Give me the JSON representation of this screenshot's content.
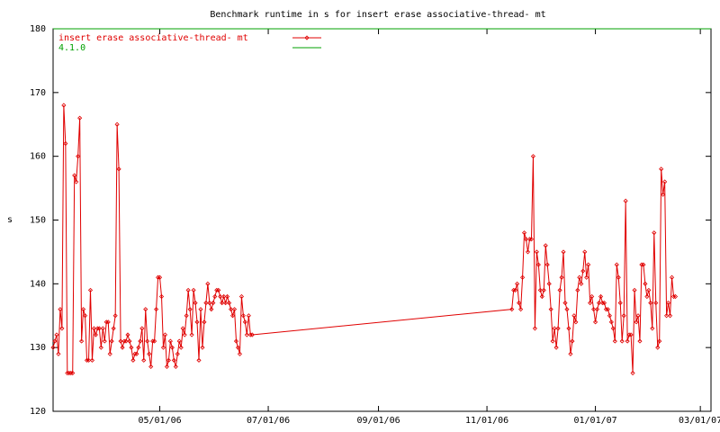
{
  "chart_data": {
    "type": "line",
    "title": "Benchmark runtime in s for insert erase associative-thread-  mt",
    "y_label": "s",
    "xlim": [
      "03/02/06",
      "03/07/07"
    ],
    "xticks": [
      "05/01/06",
      "07/01/06",
      "09/01/06",
      "11/01/06",
      "01/01/07",
      "03/01/07"
    ],
    "ylim": [
      120,
      180
    ],
    "yticks": [
      120,
      130,
      140,
      150,
      160,
      170,
      180
    ],
    "legend": "top-left",
    "series": [
      {
        "name": "insert erase associative-thread-  mt",
        "color": "#e00000",
        "markers": true,
        "x": [
          "03/02/06",
          "03/03/06",
          "03/04/06",
          "03/05/06",
          "03/06/06",
          "03/07/06",
          "03/08/06",
          "03/09/06",
          "03/10/06",
          "03/11/06",
          "03/12/06",
          "03/13/06",
          "03/14/06",
          "03/15/06",
          "03/16/06",
          "03/17/06",
          "03/18/06",
          "03/19/06",
          "03/20/06",
          "03/21/06",
          "03/22/06",
          "03/23/06",
          "03/24/06",
          "03/25/06",
          "03/26/06",
          "03/27/06",
          "03/28/06",
          "03/29/06",
          "03/30/06",
          "03/31/06",
          "04/01/06",
          "04/02/06",
          "04/03/06",
          "04/04/06",
          "04/05/06",
          "04/06/06",
          "04/07/06",
          "04/08/06",
          "04/09/06",
          "04/10/06",
          "04/11/06",
          "04/12/06",
          "04/13/06",
          "04/14/06",
          "04/15/06",
          "04/16/06",
          "04/17/06",
          "04/18/06",
          "04/19/06",
          "04/20/06",
          "04/21/06",
          "04/22/06",
          "04/23/06",
          "04/24/06",
          "04/25/06",
          "04/26/06",
          "04/27/06",
          "04/28/06",
          "04/29/06",
          "04/30/06",
          "05/01/06",
          "05/02/06",
          "05/03/06",
          "05/04/06",
          "05/05/06",
          "05/06/06",
          "05/07/06",
          "05/08/06",
          "05/09/06",
          "05/10/06",
          "05/11/06",
          "05/12/06",
          "05/13/06",
          "05/14/06",
          "05/15/06",
          "05/16/06",
          "05/17/06",
          "05/18/06",
          "05/19/06",
          "05/20/06",
          "05/21/06",
          "05/22/06",
          "05/23/06",
          "05/24/06",
          "05/25/06",
          "05/26/06",
          "05/27/06",
          "05/28/06",
          "05/29/06",
          "05/30/06",
          "05/31/06",
          "06/01/06",
          "06/02/06",
          "06/03/06",
          "06/04/06",
          "06/05/06",
          "06/06/06",
          "06/07/06",
          "06/08/06",
          "06/09/06",
          "06/10/06",
          "06/11/06",
          "06/12/06",
          "06/13/06",
          "06/14/06",
          "06/15/06",
          "06/16/06",
          "06/17/06",
          "06/18/06",
          "06/19/06",
          "06/20/06",
          "06/21/06",
          "06/22/06",
          "11/15/06",
          "11/16/06",
          "11/17/06",
          "11/18/06",
          "11/19/06",
          "11/20/06",
          "11/21/06",
          "11/22/06",
          "11/23/06",
          "11/24/06",
          "11/25/06",
          "11/26/06",
          "11/27/06",
          "11/28/06",
          "11/29/06",
          "11/30/06",
          "12/01/06",
          "12/02/06",
          "12/03/06",
          "12/04/06",
          "12/05/06",
          "12/06/06",
          "12/07/06",
          "12/08/06",
          "12/09/06",
          "12/10/06",
          "12/11/06",
          "12/12/06",
          "12/13/06",
          "12/14/06",
          "12/15/06",
          "12/16/06",
          "12/17/06",
          "12/18/06",
          "12/19/06",
          "12/20/06",
          "12/21/06",
          "12/22/06",
          "12/23/06",
          "12/24/06",
          "12/25/06",
          "12/26/06",
          "12/27/06",
          "12/28/06",
          "12/29/06",
          "12/30/06",
          "12/31/06",
          "01/01/07",
          "01/02/07",
          "01/03/07",
          "01/04/07",
          "01/05/07",
          "01/06/07",
          "01/07/07",
          "01/08/07",
          "01/09/07",
          "01/10/07",
          "01/11/07",
          "01/12/07",
          "01/13/07",
          "01/14/07",
          "01/15/07",
          "01/16/07",
          "01/17/07",
          "01/18/07",
          "01/19/07",
          "01/20/07",
          "01/21/07",
          "01/22/07",
          "01/23/07",
          "01/24/07",
          "01/25/07",
          "01/26/07",
          "01/27/07",
          "01/28/07",
          "01/29/07",
          "01/30/07",
          "01/31/07",
          "02/01/07",
          "02/02/07",
          "02/03/07",
          "02/04/07",
          "02/05/07",
          "02/06/07",
          "02/07/07",
          "02/08/07",
          "02/09/07",
          "02/10/07",
          "02/11/07",
          "02/12/07",
          "02/13/07",
          "02/14/07",
          "02/15/07"
        ],
        "values": [
          130,
          131,
          132,
          129,
          136,
          133,
          168,
          162,
          126,
          126,
          126,
          126,
          157,
          156,
          160,
          166,
          131,
          136,
          135,
          128,
          128,
          139,
          128,
          133,
          132,
          133,
          133,
          130,
          133,
          131,
          134,
          134,
          129,
          131,
          133,
          135,
          165,
          158,
          131,
          130,
          131,
          131,
          132,
          131,
          130,
          128,
          129,
          129,
          130,
          131,
          133,
          128,
          136,
          131,
          129,
          127,
          131,
          131,
          136,
          141,
          141,
          138,
          130,
          132,
          127,
          128,
          131,
          130,
          128,
          127,
          129,
          131,
          130,
          133,
          132,
          135,
          139,
          136,
          132,
          139,
          137,
          134,
          128,
          136,
          130,
          134,
          137,
          140,
          137,
          136,
          137,
          138,
          139,
          139,
          138,
          137,
          138,
          137,
          138,
          137,
          136,
          135,
          136,
          131,
          130,
          129,
          138,
          135,
          134,
          132,
          135,
          132,
          132,
          136,
          139,
          139,
          140,
          137,
          136,
          141,
          148,
          147,
          145,
          147,
          147,
          160,
          133,
          145,
          143,
          139,
          138,
          139,
          146,
          143,
          140,
          136,
          131,
          133,
          130,
          133,
          139,
          141,
          145,
          137,
          136,
          133,
          129,
          131,
          135,
          134,
          139,
          141,
          140,
          142,
          145,
          141,
          143,
          137,
          138,
          136,
          134,
          136,
          137,
          138,
          137,
          137,
          136,
          136,
          135,
          134,
          133,
          131,
          143,
          141,
          137,
          131,
          135,
          153,
          131,
          132,
          132,
          126,
          139,
          134,
          135,
          131,
          143,
          143,
          140,
          138,
          139,
          137,
          133,
          148,
          137,
          130,
          131,
          158,
          154,
          156,
          135,
          137,
          135,
          141,
          138,
          138
        ]
      },
      {
        "name": "4.1.0",
        "color": "#00a000",
        "markers": false,
        "x": [
          "03/02/06",
          "03/07/07"
        ],
        "values": [
          180,
          180
        ]
      }
    ]
  }
}
